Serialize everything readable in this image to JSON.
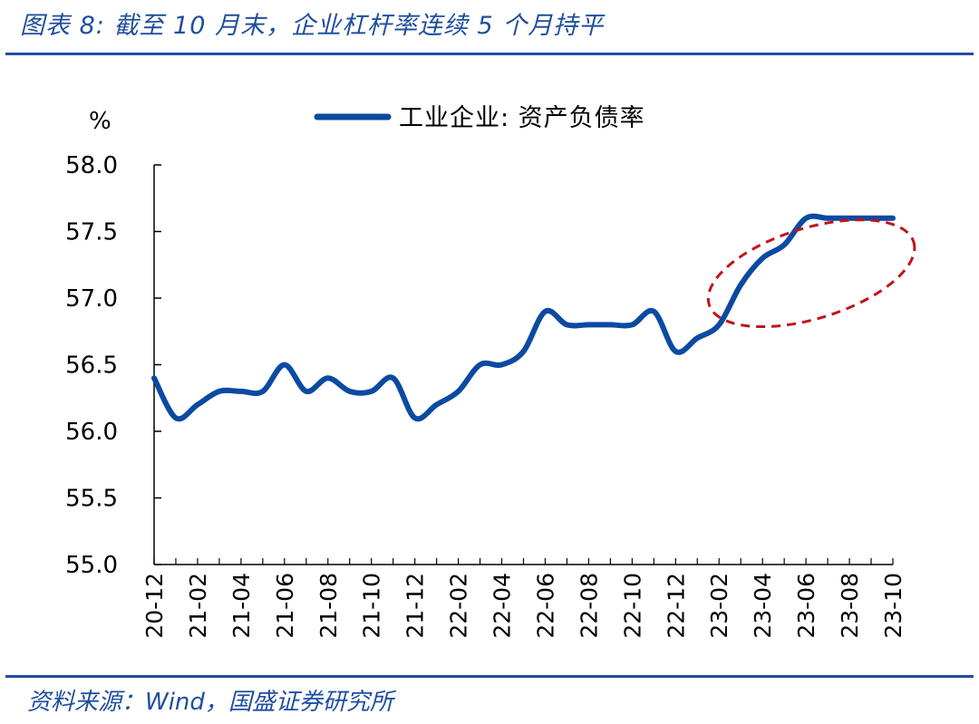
{
  "header": {
    "title": "图表 8:  截至 10 月末，企业杠杆率连续 5 个月持平"
  },
  "footer": {
    "source": "资料来源：Wind，国盛证券研究所"
  },
  "chart_data": {
    "type": "line",
    "ylabel": "%",
    "ylim": [
      55.0,
      58.0
    ],
    "yticks": [
      "55.0",
      "55.5",
      "56.0",
      "56.5",
      "57.0",
      "57.5",
      "58.0"
    ],
    "x": [
      "20-12",
      "21-01",
      "21-02",
      "21-03",
      "21-04",
      "21-05",
      "21-06",
      "21-07",
      "21-08",
      "21-09",
      "21-10",
      "21-11",
      "21-12",
      "22-01",
      "22-02",
      "22-03",
      "22-04",
      "22-05",
      "22-06",
      "22-07",
      "22-08",
      "22-09",
      "22-10",
      "22-11",
      "22-12",
      "23-01",
      "23-02",
      "23-03",
      "23-04",
      "23-05",
      "23-06",
      "23-07",
      "23-08",
      "23-09",
      "23-10"
    ],
    "xticks": [
      "20-12",
      "21-02",
      "21-04",
      "21-06",
      "21-08",
      "21-10",
      "21-12",
      "22-02",
      "22-04",
      "22-06",
      "22-08",
      "22-10",
      "22-12",
      "23-02",
      "23-04",
      "23-06",
      "23-08",
      "23-10"
    ],
    "series": [
      {
        "name": "工业企业: 资产负债率",
        "color": "#0b4aa2",
        "values": [
          56.4,
          56.1,
          56.2,
          56.3,
          56.3,
          56.3,
          56.5,
          56.3,
          56.4,
          56.3,
          56.3,
          56.4,
          56.1,
          56.2,
          56.3,
          56.5,
          56.5,
          56.6,
          56.9,
          56.8,
          56.8,
          56.8,
          56.8,
          56.9,
          56.6,
          56.7,
          56.8,
          57.1,
          57.3,
          57.4,
          57.6,
          57.6,
          57.6,
          57.6,
          57.6
        ]
      }
    ],
    "legend_position": "top-center",
    "annotation": {
      "type": "dashed-ellipse",
      "color": "#c0141b",
      "x_range": [
        "23-02",
        "23-10"
      ]
    }
  }
}
